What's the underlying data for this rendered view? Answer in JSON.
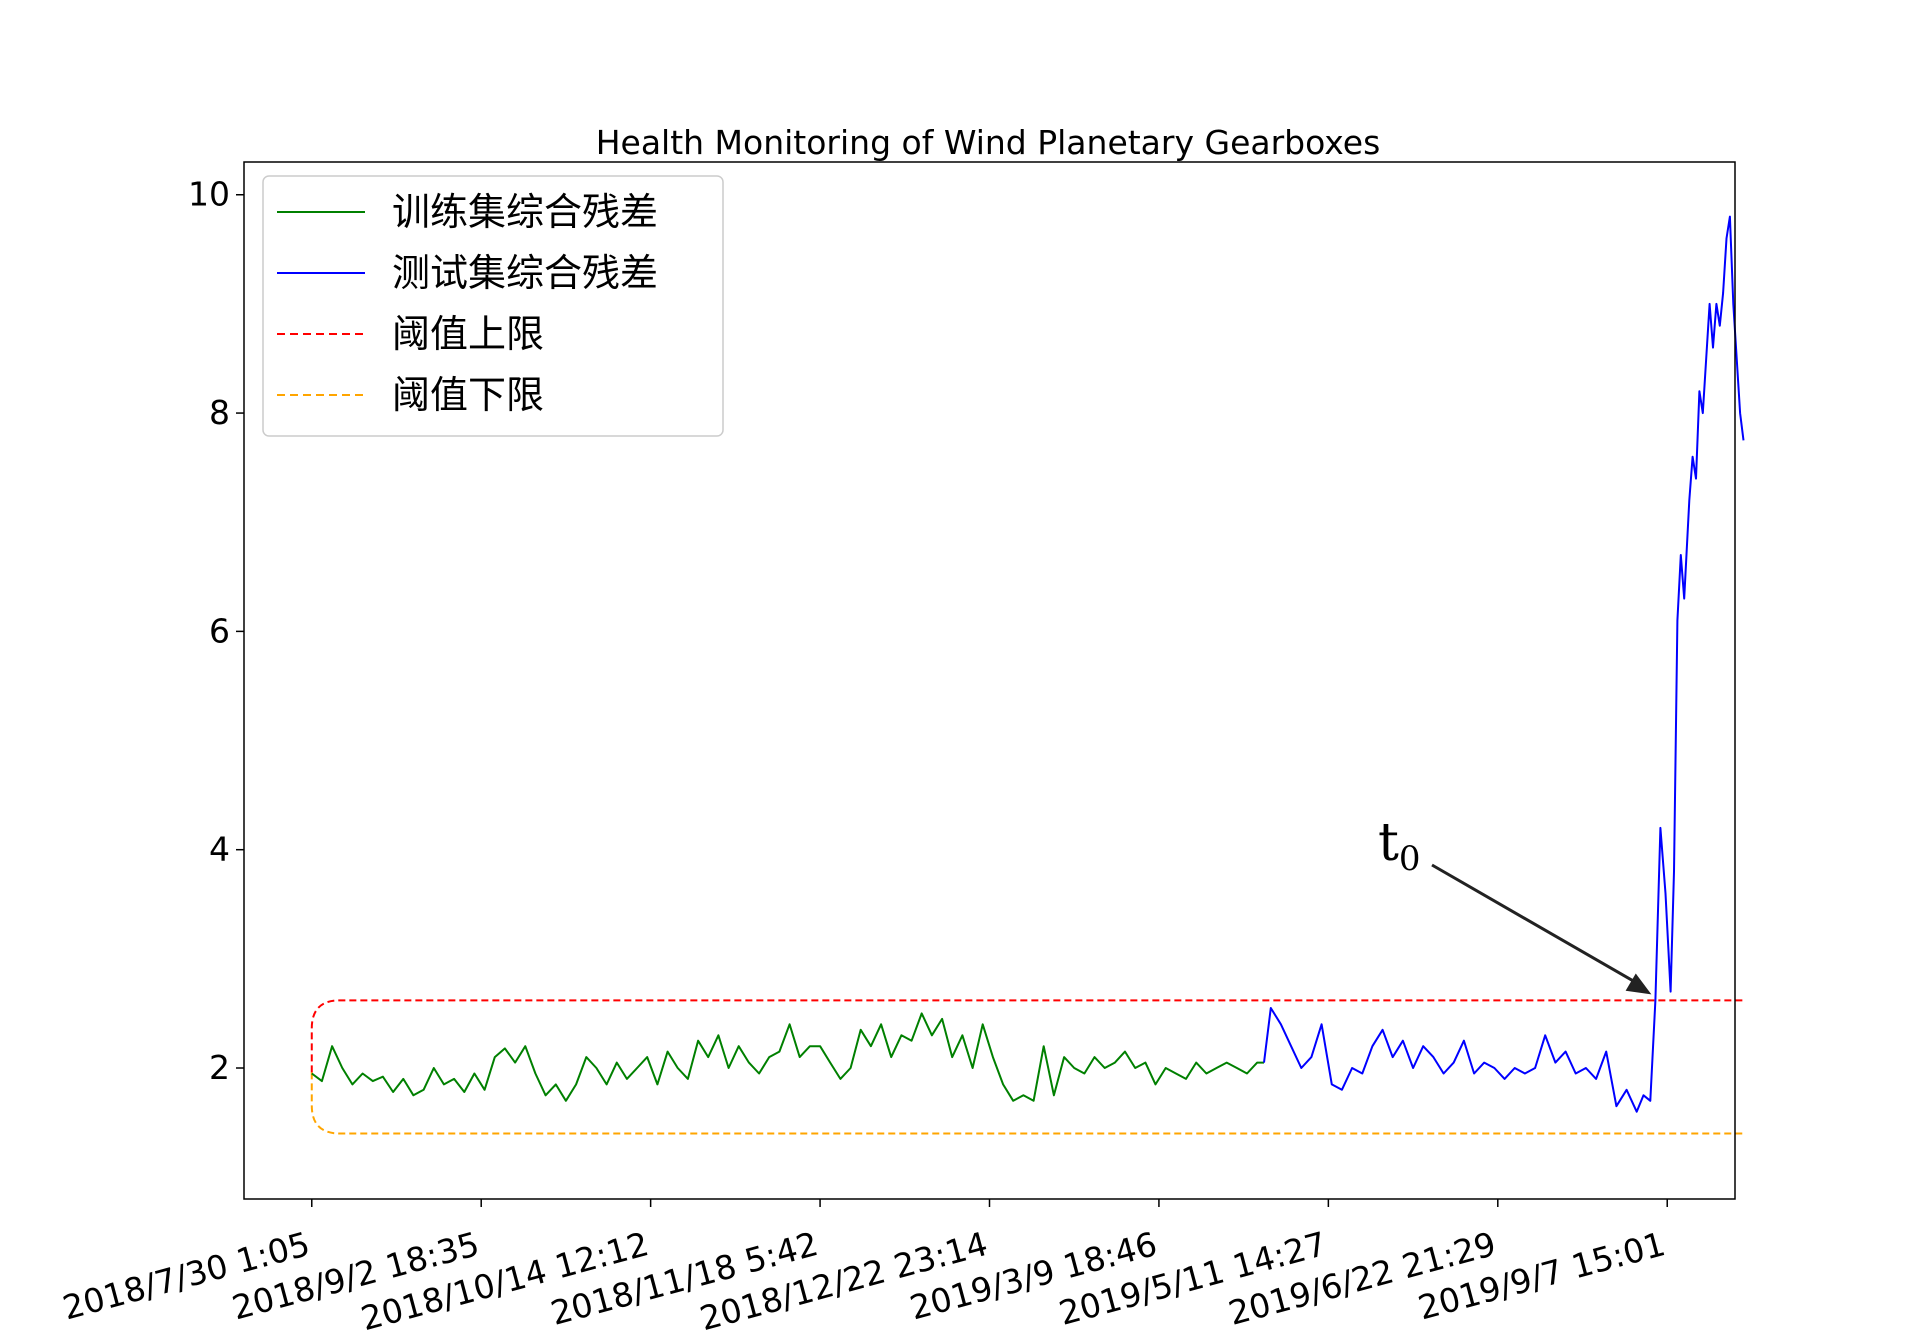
{
  "chart_data": {
    "type": "line",
    "title": "Health Monitoring of Wind Planetary Gearboxes",
    "xlabel": "",
    "ylabel": "",
    "ylim": [
      0.8,
      10.3
    ],
    "yticks": [
      2,
      4,
      6,
      8,
      10
    ],
    "xticks": [
      "2018/7/30 1:05",
      "2018/9/2 18:35",
      "2018/10/14 12:12",
      "2018/11/18 5:42",
      "2018/12/22 23:14",
      "2019/3/9 18:46",
      "2019/5/11 14:27",
      "2019/6/22 21:29",
      "2019/9/7 15:01"
    ],
    "xlim": [
      -0.4,
      8.4
    ],
    "grid": false,
    "legend_position": "upper-left",
    "thresholds": {
      "upper": 2.62,
      "lower": 1.4,
      "start": 1.96
    },
    "series": [
      {
        "name": "训练集综合残差",
        "color": "#008000",
        "x": [
          0,
          0.06,
          0.12,
          0.18,
          0.24,
          0.3,
          0.36,
          0.42,
          0.48,
          0.54,
          0.6,
          0.66,
          0.72,
          0.78,
          0.84,
          0.9,
          0.96,
          1.02,
          1.08,
          1.14,
          1.2,
          1.26,
          1.32,
          1.38,
          1.44,
          1.5,
          1.56,
          1.62,
          1.68,
          1.74,
          1.8,
          1.86,
          1.92,
          1.98,
          2.04,
          2.1,
          2.16,
          2.22,
          2.28,
          2.34,
          2.4,
          2.46,
          2.52,
          2.58,
          2.64,
          2.7,
          2.76,
          2.82,
          2.88,
          2.94,
          3.0,
          3.06,
          3.12,
          3.18,
          3.24,
          3.3,
          3.36,
          3.42,
          3.48,
          3.54,
          3.6,
          3.66,
          3.72,
          3.78,
          3.84,
          3.9,
          3.96,
          4.02,
          4.08,
          4.14,
          4.2,
          4.26,
          4.32,
          4.38,
          4.44,
          4.5,
          4.56,
          4.62,
          4.68,
          4.74,
          4.8,
          4.86,
          4.92,
          4.98,
          5.04,
          5.1,
          5.16,
          5.22,
          5.28,
          5.34,
          5.4,
          5.46,
          5.52,
          5.58,
          5.62
        ],
        "values": [
          1.95,
          1.88,
          2.2,
          2.0,
          1.85,
          1.95,
          1.88,
          1.92,
          1.78,
          1.9,
          1.75,
          1.8,
          2.0,
          1.85,
          1.9,
          1.78,
          1.95,
          1.8,
          2.1,
          2.18,
          2.05,
          2.2,
          1.95,
          1.75,
          1.85,
          1.7,
          1.85,
          2.1,
          2.0,
          1.85,
          2.05,
          1.9,
          2.0,
          2.1,
          1.85,
          2.15,
          2.0,
          1.9,
          2.25,
          2.1,
          2.3,
          2.0,
          2.2,
          2.05,
          1.95,
          2.1,
          2.15,
          2.4,
          2.1,
          2.2,
          2.2,
          2.05,
          1.9,
          2.0,
          2.35,
          2.2,
          2.4,
          2.1,
          2.3,
          2.25,
          2.5,
          2.3,
          2.45,
          2.1,
          2.3,
          2.0,
          2.4,
          2.1,
          1.85,
          1.7,
          1.75,
          1.7,
          2.2,
          1.75,
          2.1,
          2.0,
          1.95,
          2.1,
          2.0,
          2.05,
          2.15,
          2.0,
          2.05,
          1.85,
          2.0,
          1.95,
          1.9,
          2.05,
          1.95,
          2.0,
          2.05,
          2.0,
          1.95,
          2.05,
          2.05
        ]
      },
      {
        "name": "测试集综合残差",
        "color": "#0000ff",
        "x": [
          5.62,
          5.66,
          5.72,
          5.78,
          5.84,
          5.9,
          5.96,
          6.02,
          6.08,
          6.14,
          6.2,
          6.26,
          6.32,
          6.38,
          6.44,
          6.5,
          6.56,
          6.62,
          6.68,
          6.74,
          6.8,
          6.86,
          6.92,
          6.98,
          7.04,
          7.1,
          7.16,
          7.22,
          7.28,
          7.34,
          7.4,
          7.46,
          7.52,
          7.58,
          7.64,
          7.7,
          7.76,
          7.82,
          7.86,
          7.9,
          7.93,
          7.96,
          7.99,
          8.02,
          8.04,
          8.06,
          8.08,
          8.1,
          8.12,
          8.13,
          8.15,
          8.17,
          8.19,
          8.21,
          8.23,
          8.25,
          8.27,
          8.29,
          8.31,
          8.33,
          8.35,
          8.37,
          8.39,
          8.41,
          8.43,
          8.45
        ],
        "values": [
          2.05,
          2.55,
          2.4,
          2.2,
          2.0,
          2.1,
          2.4,
          1.85,
          1.8,
          2.0,
          1.95,
          2.2,
          2.35,
          2.1,
          2.25,
          2.0,
          2.2,
          2.1,
          1.95,
          2.05,
          2.25,
          1.95,
          2.05,
          2.0,
          1.9,
          2.0,
          1.95,
          2.0,
          2.3,
          2.05,
          2.15,
          1.95,
          2.0,
          1.9,
          2.15,
          1.65,
          1.8,
          1.6,
          1.75,
          1.7,
          2.62,
          4.2,
          3.6,
          2.7,
          3.8,
          6.1,
          6.7,
          6.3,
          6.9,
          7.2,
          7.6,
          7.4,
          8.2,
          8.0,
          8.5,
          9.0,
          8.6,
          9.0,
          8.8,
          9.1,
          9.6,
          9.8,
          9.0,
          8.5,
          8.0,
          7.75
        ]
      }
    ],
    "legend": [
      {
        "label": "训练集综合残差",
        "color": "#008000",
        "style": "solid"
      },
      {
        "label": "测试集综合残差",
        "color": "#0000ff",
        "style": "solid"
      },
      {
        "label": "阈值上限",
        "color": "#ff0000",
        "style": "dashed"
      },
      {
        "label": "阈值下限",
        "color": "#ffa500",
        "style": "dashed"
      }
    ],
    "annotation": {
      "text": "t",
      "subscript": "0",
      "target_x": 7.93,
      "target_y": 2.62
    }
  }
}
